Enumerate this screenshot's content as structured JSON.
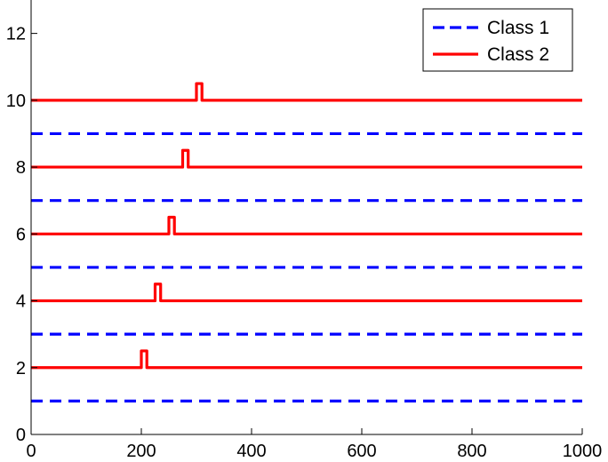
{
  "chart_data": {
    "type": "line",
    "xlim": [
      0,
      1000
    ],
    "ylim": [
      0,
      13
    ],
    "xticks": [
      0,
      200,
      400,
      600,
      800,
      1000
    ],
    "yticks": [
      0,
      2,
      4,
      6,
      8,
      10,
      12
    ],
    "grid": false,
    "legend_position": "top-right",
    "legend": [
      {
        "label": "Class 1",
        "style": "dashed",
        "color": "#0000ff"
      },
      {
        "label": "Class 2",
        "style": "solid",
        "color": "#ff0000"
      }
    ],
    "series": [
      {
        "name": "Class 1",
        "style": "dashed",
        "color": "#0000ff",
        "baseline": 1,
        "pulse_start": null,
        "pulse_end": null
      },
      {
        "name": "Class 2",
        "style": "solid",
        "color": "#ff0000",
        "baseline": 2,
        "pulse_start": 200,
        "pulse_end": 210,
        "pulse_height": 0.5
      },
      {
        "name": "Class 1",
        "style": "dashed",
        "color": "#0000ff",
        "baseline": 3,
        "pulse_start": null,
        "pulse_end": null
      },
      {
        "name": "Class 2",
        "style": "solid",
        "color": "#ff0000",
        "baseline": 4,
        "pulse_start": 225,
        "pulse_end": 235,
        "pulse_height": 0.5
      },
      {
        "name": "Class 1",
        "style": "dashed",
        "color": "#0000ff",
        "baseline": 5,
        "pulse_start": null,
        "pulse_end": null
      },
      {
        "name": "Class 2",
        "style": "solid",
        "color": "#ff0000",
        "baseline": 6,
        "pulse_start": 250,
        "pulse_end": 260,
        "pulse_height": 0.5
      },
      {
        "name": "Class 1",
        "style": "dashed",
        "color": "#0000ff",
        "baseline": 7,
        "pulse_start": null,
        "pulse_end": null
      },
      {
        "name": "Class 2",
        "style": "solid",
        "color": "#ff0000",
        "baseline": 8,
        "pulse_start": 275,
        "pulse_end": 285,
        "pulse_height": 0.5
      },
      {
        "name": "Class 1",
        "style": "dashed",
        "color": "#0000ff",
        "baseline": 9,
        "pulse_start": null,
        "pulse_end": null
      },
      {
        "name": "Class 2",
        "style": "solid",
        "color": "#ff0000",
        "baseline": 10,
        "pulse_start": 300,
        "pulse_end": 310,
        "pulse_height": 0.5
      }
    ]
  }
}
